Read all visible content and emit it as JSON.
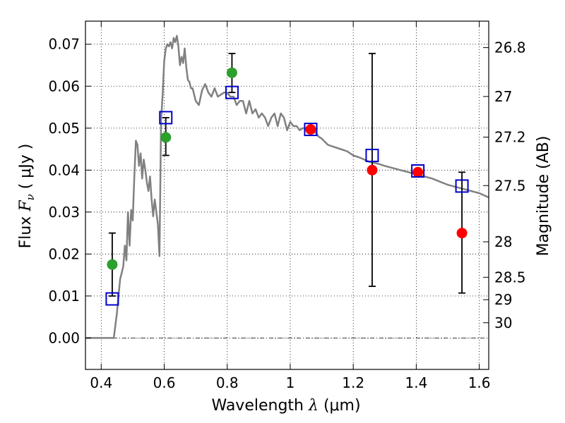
{
  "chart_data": {
    "type": "scatter",
    "xlabel": "Wavelength",
    "xlabel_symbol": "λ",
    "xlabel_unit": "(μm)",
    "ylabel": "Flux",
    "ylabel_symbol": "F",
    "ylabel_subscript": "ν",
    "ylabel_unit": "( μJy )",
    "y2label": "Magnitude (AB)",
    "xlim": [
      0.35,
      1.63
    ],
    "ylim": [
      -0.0075,
      0.0755
    ],
    "grid": true,
    "grid_style": "dotted",
    "x_ticks": [
      0.4,
      0.6,
      0.8,
      1.0,
      1.2,
      1.4,
      1.6
    ],
    "x_tick_labels": [
      "0.4",
      "0.6",
      "0.8",
      "1",
      "1.2",
      "1.4",
      "1.6"
    ],
    "y_ticks": [
      0.0,
      0.01,
      0.02,
      0.03,
      0.04,
      0.05,
      0.06,
      0.07
    ],
    "y_tick_labels": [
      "0.00",
      "0.01",
      "0.02",
      "0.03",
      "0.04",
      "0.05",
      "0.06",
      "0.07"
    ],
    "mag_ticks": [
      26.8,
      27,
      27.2,
      27.5,
      28,
      28.5,
      29,
      30
    ],
    "mag_tick_labels": [
      "26.8",
      "27",
      "27.2",
      "27.5",
      "28",
      "28.5",
      "29",
      "30"
    ],
    "zero_line": {
      "y": 0.0,
      "style": "dash-dot",
      "color": "#000000"
    },
    "template": {
      "color": "#808080",
      "x": [
        0.35,
        0.43,
        0.44,
        0.45,
        0.455,
        0.46,
        0.47,
        0.475,
        0.48,
        0.485,
        0.49,
        0.495,
        0.5,
        0.505,
        0.51,
        0.515,
        0.52,
        0.525,
        0.53,
        0.535,
        0.54,
        0.545,
        0.55,
        0.555,
        0.56,
        0.565,
        0.57,
        0.575,
        0.58,
        0.585,
        0.59,
        0.595,
        0.6,
        0.605,
        0.61,
        0.615,
        0.62,
        0.625,
        0.63,
        0.635,
        0.64,
        0.645,
        0.65,
        0.655,
        0.66,
        0.665,
        0.67,
        0.675,
        0.68,
        0.685,
        0.69,
        0.7,
        0.71,
        0.72,
        0.73,
        0.74,
        0.75,
        0.76,
        0.77,
        0.78,
        0.79,
        0.8,
        0.81,
        0.82,
        0.83,
        0.84,
        0.85,
        0.86,
        0.87,
        0.88,
        0.89,
        0.9,
        0.91,
        0.92,
        0.93,
        0.94,
        0.95,
        0.96,
        0.97,
        0.98,
        0.99,
        1.0,
        1.01,
        1.02,
        1.03,
        1.04,
        1.05,
        1.06,
        1.07,
        1.08,
        1.09,
        1.1,
        1.12,
        1.14,
        1.16,
        1.18,
        1.2,
        1.22,
        1.25,
        1.28,
        1.3,
        1.35,
        1.4,
        1.45,
        1.5,
        1.55,
        1.6,
        1.63
      ],
      "y": [
        0.0,
        0.0,
        0.0,
        0.006,
        0.01,
        0.014,
        0.017,
        0.022,
        0.0185,
        0.03,
        0.022,
        0.0305,
        0.028,
        0.038,
        0.047,
        0.046,
        0.041,
        0.044,
        0.038,
        0.0425,
        0.04,
        0.037,
        0.035,
        0.0385,
        0.033,
        0.029,
        0.033,
        0.03,
        0.027,
        0.0195,
        0.052,
        0.058,
        0.066,
        0.069,
        0.07,
        0.0695,
        0.0705,
        0.069,
        0.0715,
        0.0705,
        0.072,
        0.0695,
        0.065,
        0.067,
        0.0655,
        0.069,
        0.0645,
        0.0615,
        0.061,
        0.0595,
        0.0595,
        0.0565,
        0.0555,
        0.059,
        0.0605,
        0.0585,
        0.0575,
        0.0595,
        0.0575,
        0.058,
        0.0585,
        0.0585,
        0.0575,
        0.0575,
        0.0555,
        0.0565,
        0.0565,
        0.0535,
        0.0565,
        0.0535,
        0.0545,
        0.0525,
        0.0535,
        0.0525,
        0.0505,
        0.0525,
        0.0535,
        0.0505,
        0.0535,
        0.0525,
        0.0495,
        0.0515,
        0.0505,
        0.0505,
        0.0495,
        0.05,
        0.05,
        0.0495,
        0.0495,
        0.049,
        0.048,
        0.0475,
        0.046,
        0.0455,
        0.045,
        0.0445,
        0.0435,
        0.043,
        0.042,
        0.0415,
        0.041,
        0.04,
        0.039,
        0.038,
        0.0365,
        0.0355,
        0.0345,
        0.0335
      ]
    },
    "series": [
      {
        "color": "#2ca02c",
        "marker": "circle",
        "points": [
          {
            "x": 0.435,
            "y": 0.0175,
            "err_low": 0.01,
            "err_high": 0.025
          },
          {
            "x": 0.605,
            "y": 0.0478,
            "err_low": 0.0435,
            "err_high": 0.0525
          },
          {
            "x": 0.815,
            "y": 0.0632,
            "err_low": 0.0585,
            "err_high": 0.0678
          }
        ]
      },
      {
        "color": "#ff0000",
        "marker": "circle",
        "points": [
          {
            "x": 1.065,
            "y": 0.0497,
            "err_low": null,
            "err_high": null
          },
          {
            "x": 1.26,
            "y": 0.04,
            "err_low": 0.0123,
            "err_high": 0.0678
          },
          {
            "x": 1.405,
            "y": 0.0395,
            "err_low": null,
            "err_high": null
          },
          {
            "x": 1.545,
            "y": 0.025,
            "err_low": 0.0107,
            "err_high": 0.0395
          }
        ]
      },
      {
        "color": "#0000cc",
        "marker": "square",
        "points": [
          {
            "x": 0.435,
            "y": 0.0093
          },
          {
            "x": 0.605,
            "y": 0.0525
          },
          {
            "x": 0.815,
            "y": 0.0585
          },
          {
            "x": 1.065,
            "y": 0.0497
          },
          {
            "x": 1.26,
            "y": 0.0435
          },
          {
            "x": 1.405,
            "y": 0.0398
          },
          {
            "x": 1.545,
            "y": 0.0362
          }
        ]
      }
    ]
  }
}
